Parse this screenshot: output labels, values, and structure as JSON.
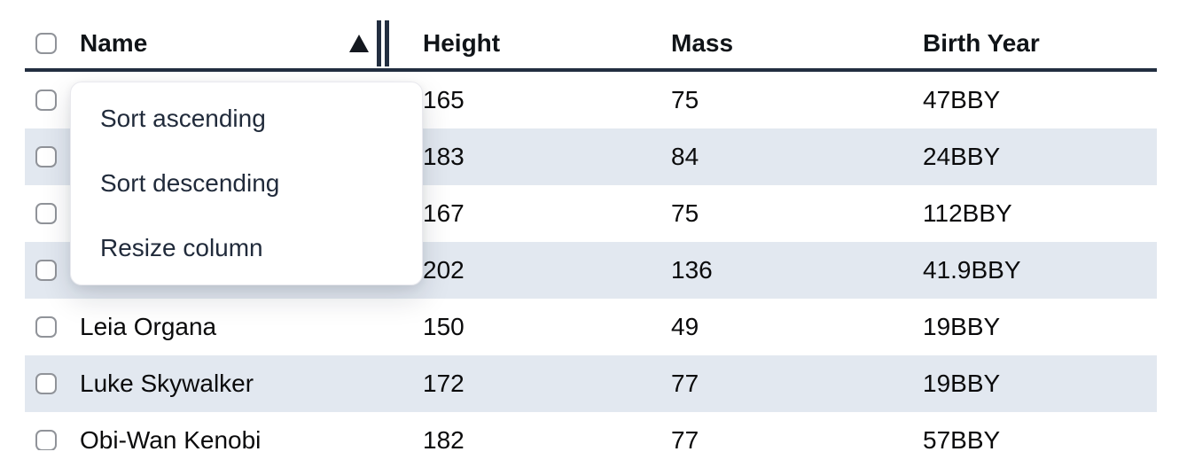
{
  "table": {
    "header": {
      "select_all_checked": false,
      "columns": [
        {
          "label": "Name",
          "sort": "ascending",
          "has_resize_handle": true
        },
        {
          "label": "Height"
        },
        {
          "label": "Mass"
        },
        {
          "label": "Birth Year"
        }
      ]
    },
    "rows": [
      {
        "name": "",
        "height": "165",
        "mass": "75",
        "birth_year": "47BBY"
      },
      {
        "name": "",
        "height": "183",
        "mass": "84",
        "birth_year": "24BBY"
      },
      {
        "name": "",
        "height": "167",
        "mass": "75",
        "birth_year": "112BBY"
      },
      {
        "name": "",
        "height": "202",
        "mass": "136",
        "birth_year": "41.9BBY"
      },
      {
        "name": "Leia Organa",
        "height": "150",
        "mass": "49",
        "birth_year": "19BBY"
      },
      {
        "name": "Luke Skywalker",
        "height": "172",
        "mass": "77",
        "birth_year": "19BBY"
      },
      {
        "name": "Obi-Wan Kenobi",
        "height": "182",
        "mass": "77",
        "birth_year": "57BBY"
      }
    ]
  },
  "context_menu": {
    "open_on_column": "Name",
    "items": [
      {
        "label": "Sort ascending"
      },
      {
        "label": "Sort descending"
      },
      {
        "label": "Resize column"
      }
    ]
  },
  "icons": {
    "sort_ascending": "triangle-up",
    "resize_handle": "double-vertical-bars"
  },
  "colors": {
    "row_stripe": "#e2e8f0",
    "header_border": "#222e40",
    "body_text": "#0b0b0c",
    "menu_text": "#212b3b",
    "checkbox_border": "#909399",
    "background": "#ffffff"
  }
}
